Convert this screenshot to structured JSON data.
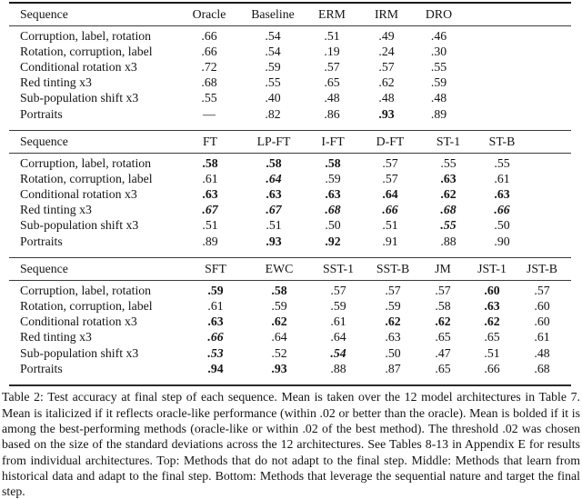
{
  "table": {
    "sections": [
      {
        "name": "top-methods-no-adapt",
        "headers": [
          "Sequence",
          "Oracle",
          "Baseline",
          "ERM",
          "IRM",
          "DRO"
        ],
        "rows": [
          {
            "label": "Corruption, label, rotation",
            "cells": [
              {
                "t": ".66",
                "s": "n"
              },
              {
                "t": ".54",
                "s": "n"
              },
              {
                "t": ".51",
                "s": "n"
              },
              {
                "t": ".49",
                "s": "n"
              },
              {
                "t": ".46",
                "s": "n"
              }
            ]
          },
          {
            "label": "Rotation, corruption, label",
            "cells": [
              {
                "t": ".66",
                "s": "n"
              },
              {
                "t": ".54",
                "s": "n"
              },
              {
                "t": ".19",
                "s": "n"
              },
              {
                "t": ".24",
                "s": "n"
              },
              {
                "t": ".30",
                "s": "n"
              }
            ]
          },
          {
            "label": "Conditional rotation x3",
            "cells": [
              {
                "t": ".72",
                "s": "n"
              },
              {
                "t": ".59",
                "s": "n"
              },
              {
                "t": ".57",
                "s": "n"
              },
              {
                "t": ".57",
                "s": "n"
              },
              {
                "t": ".55",
                "s": "n"
              }
            ]
          },
          {
            "label": "Red tinting x3",
            "cells": [
              {
                "t": ".68",
                "s": "n"
              },
              {
                "t": ".55",
                "s": "n"
              },
              {
                "t": ".65",
                "s": "n"
              },
              {
                "t": ".62",
                "s": "n"
              },
              {
                "t": ".59",
                "s": "n"
              }
            ]
          },
          {
            "label": "Sub-population shift x3",
            "cells": [
              {
                "t": ".55",
                "s": "n"
              },
              {
                "t": ".40",
                "s": "n"
              },
              {
                "t": ".48",
                "s": "n"
              },
              {
                "t": ".48",
                "s": "n"
              },
              {
                "t": ".48",
                "s": "n"
              }
            ]
          },
          {
            "label": "Portraits",
            "cells": [
              {
                "t": "—",
                "s": "n"
              },
              {
                "t": ".82",
                "s": "n"
              },
              {
                "t": ".86",
                "s": "n"
              },
              {
                "t": ".93",
                "s": "b"
              },
              {
                "t": ".89",
                "s": "n"
              }
            ]
          }
        ]
      },
      {
        "name": "middle-methods-historical-adapt",
        "headers": [
          "Sequence",
          "FT",
          "LP-FT",
          "I-FT",
          "D-FT",
          "ST-1",
          "ST-B"
        ],
        "rows": [
          {
            "label": "Corruption, label, rotation",
            "cells": [
              {
                "t": ".58",
                "s": "b"
              },
              {
                "t": ".58",
                "s": "b"
              },
              {
                "t": ".58",
                "s": "b"
              },
              {
                "t": ".57",
                "s": "n"
              },
              {
                "t": ".55",
                "s": "n"
              },
              {
                "t": ".55",
                "s": "n"
              }
            ]
          },
          {
            "label": "Rotation, corruption, label",
            "cells": [
              {
                "t": ".61",
                "s": "n"
              },
              {
                "t": ".64",
                "s": "bi"
              },
              {
                "t": ".59",
                "s": "n"
              },
              {
                "t": ".57",
                "s": "n"
              },
              {
                "t": ".63",
                "s": "b"
              },
              {
                "t": ".61",
                "s": "n"
              }
            ]
          },
          {
            "label": "Conditional rotation x3",
            "cells": [
              {
                "t": ".63",
                "s": "b"
              },
              {
                "t": ".63",
                "s": "b"
              },
              {
                "t": ".63",
                "s": "b"
              },
              {
                "t": ".64",
                "s": "b"
              },
              {
                "t": ".62",
                "s": "b"
              },
              {
                "t": ".63",
                "s": "b"
              }
            ]
          },
          {
            "label": "Red tinting x3",
            "cells": [
              {
                "t": ".67",
                "s": "bi"
              },
              {
                "t": ".67",
                "s": "bi"
              },
              {
                "t": ".68",
                "s": "bi"
              },
              {
                "t": ".66",
                "s": "bi"
              },
              {
                "t": ".68",
                "s": "bi"
              },
              {
                "t": ".66",
                "s": "bi"
              }
            ]
          },
          {
            "label": "Sub-population shift x3",
            "cells": [
              {
                "t": ".51",
                "s": "n"
              },
              {
                "t": ".51",
                "s": "n"
              },
              {
                "t": ".50",
                "s": "n"
              },
              {
                "t": ".51",
                "s": "n"
              },
              {
                "t": ".55",
                "s": "bi"
              },
              {
                "t": ".50",
                "s": "n"
              }
            ]
          },
          {
            "label": "Portraits",
            "cells": [
              {
                "t": ".89",
                "s": "n"
              },
              {
                "t": ".93",
                "s": "b"
              },
              {
                "t": ".92",
                "s": "b"
              },
              {
                "t": ".91",
                "s": "n"
              },
              {
                "t": ".88",
                "s": "n"
              },
              {
                "t": ".90",
                "s": "n"
              }
            ]
          }
        ]
      },
      {
        "name": "bottom-methods-sequential-target",
        "headers": [
          "Sequence",
          "SFT",
          "EWC",
          "SST-1",
          "SST-B",
          "JM",
          "JST-1",
          "JST-B"
        ],
        "rows": [
          {
            "label": "Corruption, label, rotation",
            "cells": [
              {
                "t": ".59",
                "s": "b"
              },
              {
                "t": ".58",
                "s": "b"
              },
              {
                "t": ".57",
                "s": "n"
              },
              {
                "t": ".57",
                "s": "n"
              },
              {
                "t": ".57",
                "s": "n"
              },
              {
                "t": ".60",
                "s": "b"
              },
              {
                "t": ".57",
                "s": "n"
              }
            ]
          },
          {
            "label": "Rotation, corruption, label",
            "cells": [
              {
                "t": ".61",
                "s": "n"
              },
              {
                "t": ".59",
                "s": "n"
              },
              {
                "t": ".59",
                "s": "n"
              },
              {
                "t": ".59",
                "s": "n"
              },
              {
                "t": ".58",
                "s": "n"
              },
              {
                "t": ".63",
                "s": "b"
              },
              {
                "t": ".60",
                "s": "n"
              }
            ]
          },
          {
            "label": "Conditional rotation x3",
            "cells": [
              {
                "t": ".63",
                "s": "b"
              },
              {
                "t": ".62",
                "s": "b"
              },
              {
                "t": ".61",
                "s": "n"
              },
              {
                "t": ".62",
                "s": "b"
              },
              {
                "t": ".62",
                "s": "b"
              },
              {
                "t": ".62",
                "s": "b"
              },
              {
                "t": ".60",
                "s": "n"
              }
            ]
          },
          {
            "label": "Red tinting x3",
            "cells": [
              {
                "t": ".66",
                "s": "bi"
              },
              {
                "t": ".64",
                "s": "n"
              },
              {
                "t": ".64",
                "s": "n"
              },
              {
                "t": ".63",
                "s": "n"
              },
              {
                "t": ".65",
                "s": "n"
              },
              {
                "t": ".65",
                "s": "n"
              },
              {
                "t": ".61",
                "s": "n"
              }
            ]
          },
          {
            "label": "Sub-population shift x3",
            "cells": [
              {
                "t": ".53",
                "s": "bi"
              },
              {
                "t": ".52",
                "s": "n"
              },
              {
                "t": ".54",
                "s": "bi"
              },
              {
                "t": ".50",
                "s": "n"
              },
              {
                "t": ".47",
                "s": "n"
              },
              {
                "t": ".51",
                "s": "n"
              },
              {
                "t": ".48",
                "s": "n"
              }
            ]
          },
          {
            "label": "Portraits",
            "cells": [
              {
                "t": ".94",
                "s": "b"
              },
              {
                "t": ".93",
                "s": "b"
              },
              {
                "t": ".88",
                "s": "n"
              },
              {
                "t": ".87",
                "s": "n"
              },
              {
                "t": ".65",
                "s": "n"
              },
              {
                "t": ".66",
                "s": "n"
              },
              {
                "t": ".68",
                "s": "n"
              }
            ]
          }
        ]
      }
    ]
  },
  "caption": {
    "text": "Table 2: Test accuracy at final step of each sequence. Mean is taken over the 12 model architectures in Table 7. Mean is italicized if it reflects oracle-like performance (within .02 or better than the oracle). Mean is bolded if it is among the best-performing methods (oracle-like or within .02 of the best method). The threshold .02 was chosen based on the size of the standard deviations across the 12 architectures. See Tables 8-13 in Appendix E for results from individual architectures. Top: Methods that do not adapt to the final step. Middle: Methods that learn from historical data and adapt to the final step. Bottom: Methods that leverage the sequential nature and target the final step."
  }
}
